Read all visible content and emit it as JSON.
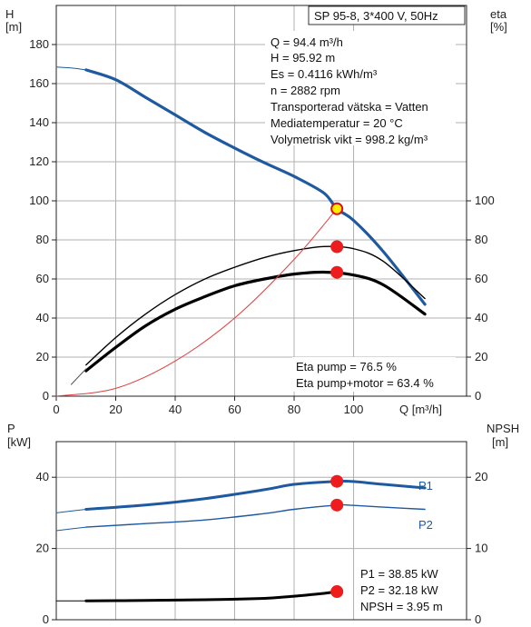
{
  "chart_data": [
    {
      "type": "line",
      "title": "SP 95-8, 3*400 V, 50Hz",
      "y_left_label": [
        "H",
        "[m]"
      ],
      "y_right_label": [
        "eta",
        "[%]"
      ],
      "x_label": "Q [m³/h]",
      "xlim": [
        0,
        138
      ],
      "ylim_left": [
        0,
        200
      ],
      "ylim_right": [
        0,
        200
      ],
      "x_ticks": [
        0,
        20,
        40,
        60,
        80,
        100
      ],
      "y_left_ticks": [
        0,
        20,
        40,
        60,
        80,
        100,
        120,
        140,
        160,
        180
      ],
      "y_right_ticks": [
        0,
        20,
        40,
        60,
        80,
        100
      ],
      "grid": true,
      "info_lines": [
        "Q = 94.4 m³/h",
        "H = 95.92 m",
        "Es = 0.4116 kWh/m³",
        "n = 2882 rpm",
        "Transporterad vätska = Vatten",
        "Mediatemperatur = 20 °C",
        "Volymetrisk vikt = 998.2 kg/m³"
      ],
      "eta_lines": [
        "Eta pump = 76.5 %",
        "Eta pump+motor = 63.4 %"
      ],
      "series": [
        {
          "key": "H",
          "color": "#1f5aa0",
          "width": 3.2,
          "x": [
            10,
            20,
            30,
            40,
            50,
            60,
            70,
            80,
            90,
            94.4,
            100,
            110,
            124
          ],
          "y": [
            167,
            162,
            153,
            144,
            135,
            127,
            119.5,
            112.5,
            104,
            95.9,
            90,
            74,
            47
          ]
        },
        {
          "key": "H-ext",
          "color": "#1f5aa0",
          "width": 1,
          "x": [
            0,
            5,
            10
          ],
          "y": [
            168.5,
            168,
            167
          ]
        },
        {
          "key": "eta-pump",
          "color": "#000000",
          "width": 1.4,
          "x": [
            10,
            20,
            30,
            40,
            50,
            60,
            70,
            80,
            90,
            100,
            110,
            124
          ],
          "y": [
            16,
            30,
            42,
            52,
            60,
            66,
            71,
            74.5,
            76.6,
            75.5,
            69,
            50
          ]
        },
        {
          "key": "eta-pump-motor",
          "color": "#000000",
          "width": 3.2,
          "x": [
            10,
            20,
            30,
            40,
            50,
            60,
            70,
            80,
            90,
            100,
            110,
            124
          ],
          "y": [
            13,
            25,
            36,
            44.5,
            51,
            56.5,
            60,
            62.5,
            63.5,
            62,
            57,
            42
          ]
        },
        {
          "key": "eta-ext",
          "color": "#555555",
          "width": 1,
          "x": [
            5,
            10
          ],
          "y": [
            6,
            14
          ]
        },
        {
          "key": "system",
          "color": "#e04040",
          "width": 1,
          "x": [
            0,
            20,
            40,
            60,
            80,
            94.4
          ],
          "y": [
            0,
            4,
            18,
            40,
            70,
            96
          ]
        }
      ],
      "markers": [
        {
          "x": 94.4,
          "y": 95.92,
          "fill": "#ffee00",
          "stroke": "#e01010"
        },
        {
          "x": 94.4,
          "y": 76.5,
          "fill": "#ee1c1c",
          "stroke": "#ee1c1c"
        },
        {
          "x": 94.4,
          "y": 63.4,
          "fill": "#ee1c1c",
          "stroke": "#ee1c1c"
        }
      ]
    },
    {
      "type": "line",
      "y_left_label": [
        "P",
        "[kW]"
      ],
      "y_right_label": [
        "NPSH",
        "[m]"
      ],
      "xlim": [
        0,
        138
      ],
      "ylim_left": [
        0,
        50
      ],
      "ylim_right": [
        0,
        25
      ],
      "y_left_ticks": [
        0,
        20,
        40
      ],
      "y_right_ticks": [
        0,
        10,
        20
      ],
      "grid": true,
      "info_lines": [
        "P1 = 38.85 kW",
        "P2 = 32.18 kW",
        "NPSH = 3.95 m"
      ],
      "series": [
        {
          "key": "P1",
          "name": "P1",
          "color": "#1f5aa0",
          "width": 3,
          "x": [
            10,
            30,
            50,
            70,
            80,
            94.4,
            100,
            110,
            124
          ],
          "y": [
            31,
            32.2,
            34,
            36.5,
            38,
            38.85,
            38.8,
            38,
            37
          ]
        },
        {
          "key": "P1-ext",
          "color": "#1f5aa0",
          "width": 1,
          "x": [
            0,
            10
          ],
          "y": [
            30,
            31
          ]
        },
        {
          "key": "P2",
          "name": "P2",
          "color": "#1f5aa0",
          "width": 1.4,
          "x": [
            10,
            30,
            50,
            70,
            80,
            94.4,
            100,
            110,
            124
          ],
          "y": [
            26,
            27,
            28,
            29.8,
            31,
            32.18,
            32.1,
            31.6,
            31
          ]
        },
        {
          "key": "P2-ext",
          "color": "#1f5aa0",
          "width": 1,
          "x": [
            0,
            10
          ],
          "y": [
            25,
            26
          ]
        },
        {
          "key": "NPSH",
          "color": "#000000",
          "width": 3,
          "x": [
            10,
            30,
            50,
            70,
            80,
            90,
            94.4
          ],
          "y": [
            2.65,
            2.7,
            2.8,
            3.0,
            3.3,
            3.7,
            3.95
          ]
        },
        {
          "key": "NPSH-ext",
          "color": "#000000",
          "width": 1,
          "x": [
            0,
            10
          ],
          "y": [
            2.65,
            2.65
          ]
        }
      ],
      "markers": [
        {
          "x": 94.4,
          "y": 38.85,
          "axis": "left",
          "fill": "#ee1c1c",
          "stroke": "#ee1c1c"
        },
        {
          "x": 94.4,
          "y": 32.18,
          "axis": "left",
          "fill": "#ee1c1c",
          "stroke": "#ee1c1c"
        },
        {
          "x": 94.4,
          "y": 3.95,
          "axis": "right",
          "fill": "#ee1c1c",
          "stroke": "#ee1c1c"
        }
      ]
    }
  ]
}
